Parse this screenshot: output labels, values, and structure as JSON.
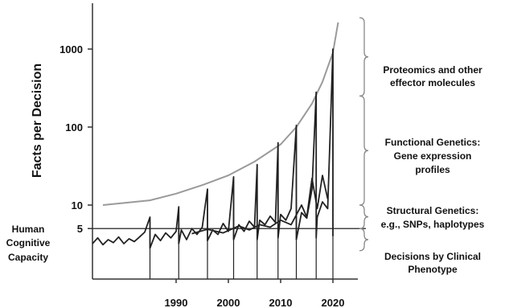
{
  "chart_data": {
    "type": "line",
    "title": "",
    "xlabel": "",
    "ylabel": "Facts per Decision",
    "y_scale": "log",
    "xlim": [
      1974,
      2024
    ],
    "ylim": [
      2.5,
      3000
    ],
    "x_ticks": [
      1990,
      2000,
      2010,
      2020
    ],
    "x_tick_labels": [
      "1990",
      "2000",
      "2010",
      "2020"
    ],
    "y_ticks": [
      5,
      10,
      100,
      1000
    ],
    "y_tick_labels": [
      "5",
      "10",
      "100",
      "1000"
    ],
    "capacity_line": {
      "label": [
        "Human",
        "Cognitive",
        "Capacity"
      ],
      "value": 5
    },
    "envelope_curve": {
      "x": [
        1976,
        1985,
        1990,
        1995,
        2000,
        2005,
        2010,
        2013,
        2016,
        2018,
        2020,
        2021
      ],
      "values": [
        10,
        11.5,
        14,
        18,
        24,
        36,
        60,
        100,
        200,
        380,
        900,
        2200
      ]
    },
    "spike_peaks": {
      "x": [
        1985,
        1990.5,
        1996,
        2001,
        2005.5,
        2009.5,
        2013,
        2016.8,
        2020
      ],
      "values": [
        7,
        9.5,
        16,
        23,
        33,
        63,
        105,
        280,
        1000
      ]
    },
    "series": [
      {
        "x": [
          1974,
          1975,
          1976,
          1977,
          1978,
          1979,
          1980,
          1981,
          1982,
          1983,
          1984,
          1985,
          1985,
          1986,
          1987,
          1988,
          1989,
          1990,
          1990.5,
          1990.5,
          1991,
          1992,
          1993,
          1994,
          1995,
          1996,
          1996,
          1997,
          1998,
          1999,
          2000,
          2001,
          2001,
          2002,
          2003,
          2004,
          2005,
          2005.5,
          2005.5,
          2006,
          2007,
          2008,
          2009,
          2009.5,
          2009.5,
          2010,
          2011,
          2012,
          2013,
          2013,
          2014,
          2015,
          2016,
          2016.8,
          2016.8,
          2017,
          2018,
          2019,
          2020,
          2020
        ],
        "values": [
          3.2,
          3.8,
          3.1,
          3.6,
          3.3,
          3.9,
          3.2,
          3.7,
          3.4,
          3.9,
          4.5,
          7,
          2.8,
          4.2,
          3.5,
          4.4,
          3.8,
          4.6,
          9.5,
          3.2,
          4.8,
          3.6,
          5,
          4.2,
          5.2,
          16,
          3.5,
          4.8,
          4.2,
          5.8,
          4.6,
          23,
          3.6,
          5.6,
          4.6,
          6.2,
          5.2,
          33,
          3.6,
          6.4,
          5.6,
          7.2,
          6,
          63,
          3.8,
          7.6,
          6.4,
          9,
          105,
          3.6,
          8,
          6.8,
          16,
          280,
          3.8,
          7,
          11,
          9,
          1000,
          4
        ]
      },
      {
        "x": [
          1993,
          1996,
          1999,
          2002,
          2004,
          2006,
          2008,
          2010,
          2012,
          2014,
          2015,
          2016,
          2017,
          2018,
          2019
        ],
        "values": [
          4.3,
          4.9,
          4.4,
          5.4,
          4.8,
          5.6,
          5.2,
          6.4,
          5.6,
          10,
          7,
          22,
          9,
          24,
          12
        ]
      }
    ],
    "brackets": [
      {
        "label": [
          "Proteomics and other",
          "effector molecules"
        ],
        "from": 250,
        "to": 2600
      },
      {
        "label": [
          "Functional Genetics:",
          "Gene expression",
          "profiles"
        ],
        "from": 10,
        "to": 250
      },
      {
        "label": [
          "Structural Genetics:",
          "e.g., SNPs, haplotypes"
        ],
        "from": 5,
        "to": 10
      },
      {
        "label": [
          "Decisions by Clinical",
          "Phenotype"
        ],
        "from": 2.6,
        "to": 5
      }
    ],
    "grid": false,
    "legend": "none",
    "colors": {
      "line": "#222222",
      "envelope": "#9a9a9a",
      "capacity_line": "#444444",
      "axis": "#333333"
    }
  }
}
